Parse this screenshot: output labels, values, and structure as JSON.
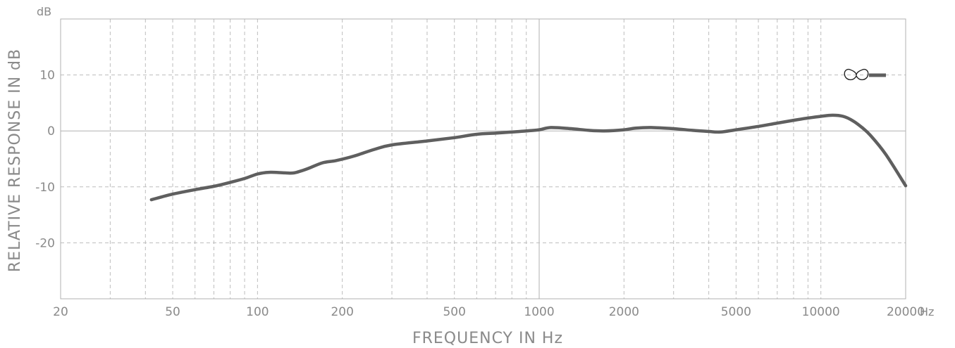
{
  "chart_data": {
    "type": "line",
    "x_scale": "log",
    "xlim": [
      20,
      20000
    ],
    "ylim": [
      -30,
      20
    ],
    "xlabel": "FREQUENCY  IN  Hz",
    "ylabel": "RELATIVE RESPONSE  IN  dB",
    "y_unit": "dB",
    "x_unit": "Hz",
    "x_ticks": [
      {
        "value": 20,
        "label": "20"
      },
      {
        "value": 50,
        "label": "50"
      },
      {
        "value": 100,
        "label": "100"
      },
      {
        "value": 200,
        "label": "200"
      },
      {
        "value": 500,
        "label": "500"
      },
      {
        "value": 1000,
        "label": "1000"
      },
      {
        "value": 2000,
        "label": "2000"
      },
      {
        "value": 5000,
        "label": "5000"
      },
      {
        "value": 10000,
        "label": "10000"
      },
      {
        "value": 20000,
        "label": "20000"
      }
    ],
    "y_ticks": [
      {
        "value": 10,
        "label": "10"
      },
      {
        "value": 0,
        "label": "0"
      },
      {
        "value": -10,
        "label": "-10"
      },
      {
        "value": -20,
        "label": "-20"
      }
    ],
    "grid": true,
    "legend": {
      "position": "top-right",
      "symbol": "cardioid-icon"
    },
    "series": [
      {
        "color": "#5f5f5f",
        "x": [
          42,
          50,
          60,
          70,
          80,
          90,
          100,
          110,
          125,
          135,
          150,
          170,
          190,
          220,
          260,
          300,
          400,
          500,
          600,
          700,
          800,
          900,
          1000,
          1100,
          1300,
          1500,
          1700,
          2000,
          2200,
          2500,
          3000,
          3500,
          4000,
          4400,
          5000,
          6000,
          7000,
          8000,
          9000,
          10000,
          11000,
          12000,
          13000,
          14000,
          15000,
          17000,
          20000
        ],
        "y": [
          -12.3,
          -11.3,
          -10.5,
          -9.9,
          -9.2,
          -8.5,
          -7.7,
          -7.4,
          -7.5,
          -7.5,
          -6.8,
          -5.7,
          -5.3,
          -4.5,
          -3.3,
          -2.5,
          -1.8,
          -1.2,
          -0.6,
          -0.4,
          -0.2,
          0.0,
          0.2,
          0.6,
          0.4,
          0.1,
          0.0,
          0.2,
          0.5,
          0.6,
          0.4,
          0.1,
          -0.1,
          -0.2,
          0.2,
          0.8,
          1.4,
          1.9,
          2.3,
          2.6,
          2.8,
          2.6,
          1.8,
          0.6,
          -0.8,
          -4.2,
          -9.8
        ]
      }
    ]
  }
}
